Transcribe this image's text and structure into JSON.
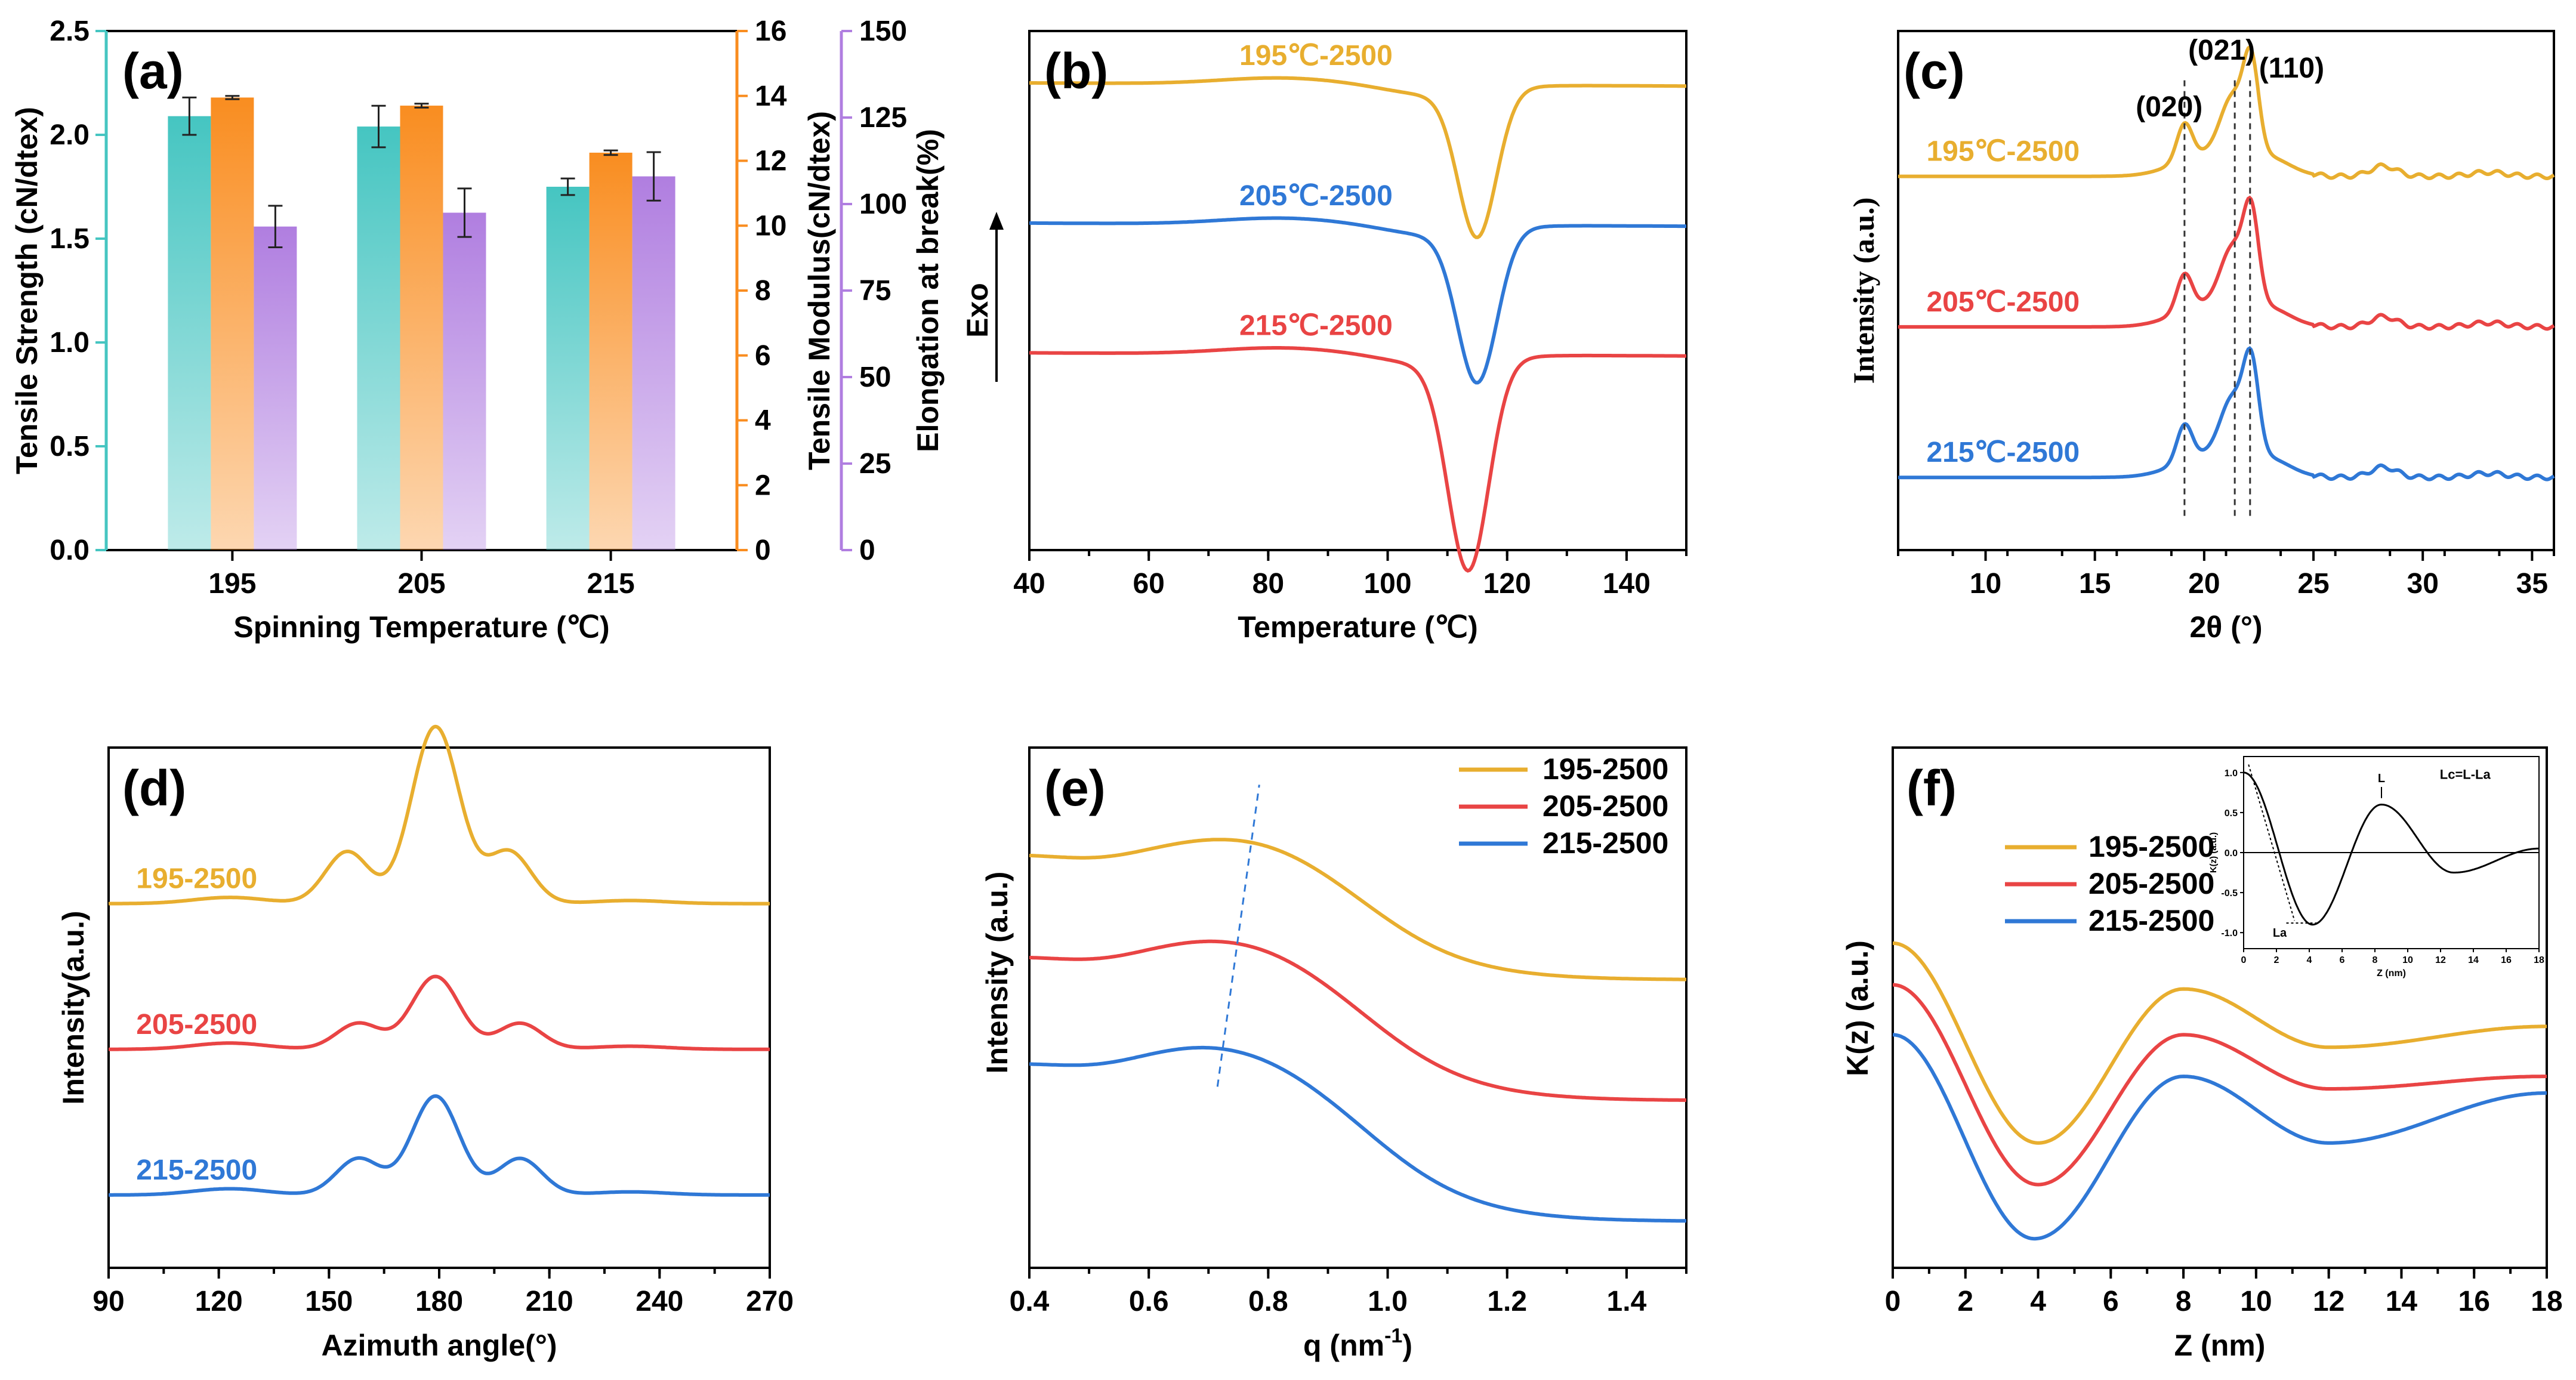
{
  "colors": {
    "yellow": "#E8AE2F",
    "red": "#E94444",
    "blue": "#2F78D6",
    "teal": "#45C5C1",
    "orange": "#F98D20",
    "purple": "#B07EE0"
  },
  "chart_data": [
    {
      "id": "a",
      "type": "bar",
      "panel_label": "(a)",
      "xlabel": "Spinning Temperature (℃)",
      "categories": [
        "195",
        "205",
        "215"
      ],
      "series": [
        {
          "name": "Tensile Strength",
          "axis": "left",
          "values": [
            2.09,
            2.04,
            1.75
          ],
          "errors": [
            0.09,
            0.1,
            0.04
          ]
        },
        {
          "name": "Tensile Modulus",
          "axis": "right1",
          "values": [
            13.95,
            13.7,
            12.25
          ],
          "errors": [
            0.05,
            0.06,
            0.07
          ]
        },
        {
          "name": "Elongation at break",
          "axis": "right2",
          "values": [
            93.5,
            97.5,
            108
          ],
          "errors": [
            6,
            7,
            7
          ]
        }
      ],
      "axes": {
        "left": {
          "label": "Tensile Strength (cN/dtex)",
          "ylim": [
            0,
            2.5
          ],
          "ticks": [
            "0.0",
            "0.5",
            "1.0",
            "1.5",
            "2.0",
            "2.5"
          ]
        },
        "right1": {
          "label": "Tensile Modulus(cN/dtex)",
          "ylim": [
            0,
            16
          ],
          "ticks": [
            "0",
            "2",
            "4",
            "6",
            "8",
            "10",
            "12",
            "14",
            "16"
          ]
        },
        "right2": {
          "label": "Elongation at break(%)",
          "ylim": [
            0,
            150
          ],
          "ticks": [
            "0",
            "25",
            "50",
            "75",
            "100",
            "125",
            "150"
          ]
        }
      }
    },
    {
      "id": "b",
      "type": "line",
      "panel_label": "(b)",
      "xlabel": "Temperature (℃)",
      "ylabel": "Exo",
      "xlim": [
        40,
        150
      ],
      "xticks": [
        "40",
        "60",
        "80",
        "100",
        "120",
        "140"
      ],
      "series": [
        {
          "name": "195℃-2500",
          "color": "yellow",
          "baseline": 0.9,
          "peak_x": 115,
          "depth": 0.28,
          "width": 3.2
        },
        {
          "name": "205℃-2500",
          "color": "blue",
          "baseline": 0.63,
          "peak_x": 115,
          "depth": 0.29,
          "width": 3.3
        },
        {
          "name": "215℃-2500",
          "color": "red",
          "baseline": 0.38,
          "peak_x": 113.5,
          "depth": 0.4,
          "width": 3.4
        }
      ]
    },
    {
      "id": "c",
      "type": "line",
      "panel_label": "(c)",
      "xlabel": "2θ (°)",
      "ylabel": "Intensity (a.u.)",
      "xlim": [
        6,
        36
      ],
      "xticks": [
        "10",
        "15",
        "20",
        "25",
        "30",
        "35"
      ],
      "peak_labels": [
        "(020)",
        "(021)",
        "(110)"
      ],
      "peak_positions": [
        19.1,
        21.4,
        22.1
      ],
      "series": [
        {
          "name": "195℃-2500",
          "color": "yellow",
          "offset": 0.72
        },
        {
          "name": "205℃-2500",
          "color": "red",
          "offset": 0.43
        },
        {
          "name": "215℃-2500",
          "color": "blue",
          "offset": 0.14
        }
      ]
    },
    {
      "id": "d",
      "type": "line",
      "panel_label": "(d)",
      "xlabel": "Azimuth angle(°)",
      "ylabel": "Intensity(a.u.)",
      "xlim": [
        90,
        270
      ],
      "xticks": [
        "90",
        "120",
        "150",
        "180",
        "210",
        "240",
        "270"
      ],
      "series": [
        {
          "name": "195-2500",
          "color": "yellow",
          "offset": 0.7,
          "main_peak": 0.34,
          "side_peak": 0.1,
          "side_pos": [
            155,
            199
          ]
        },
        {
          "name": "205-2500",
          "color": "red",
          "offset": 0.42,
          "main_peak": 0.14,
          "side_peak": 0.05,
          "side_pos": [
            158,
            202
          ]
        },
        {
          "name": "215-2500",
          "color": "blue",
          "offset": 0.14,
          "main_peak": 0.19,
          "side_peak": 0.07,
          "side_pos": [
            158,
            202
          ]
        }
      ]
    },
    {
      "id": "e",
      "type": "line",
      "panel_label": "(e)",
      "xlabel": "q (nm",
      "xlabel_sup": "-1",
      "xlabel_end": ")",
      "ylabel": "Intensity (a.u.)",
      "xlim": [
        0.4,
        1.5
      ],
      "xticks": [
        "0.4",
        "0.6",
        "0.8",
        "1.0",
        "1.2",
        "1.4"
      ],
      "series": [
        {
          "name": "195-2500",
          "color": "yellow",
          "base_left": 0.77,
          "base_right": 0.5,
          "peak_x": 0.77,
          "amp": 0.05
        },
        {
          "name": "205-2500",
          "color": "red",
          "base_left": 0.55,
          "base_right": 0.24,
          "peak_x": 0.75,
          "amp": 0.05
        },
        {
          "name": "215-2500",
          "color": "blue",
          "base_left": 0.32,
          "base_right": -0.02,
          "peak_x": 0.73,
          "amp": 0.05
        }
      ]
    },
    {
      "id": "f",
      "type": "line",
      "panel_label": "(f)",
      "xlabel": "Z (nm)",
      "ylabel": "K(z) (a.u.)",
      "xlim": [
        0,
        18
      ],
      "xticks": [
        "0",
        "2",
        "4",
        "6",
        "8",
        "10",
        "12",
        "14",
        "16",
        "18"
      ],
      "series": [
        {
          "name": "195-2500",
          "color": "yellow",
          "start": 0.58,
          "min_x": 4,
          "min_y": 0.1,
          "max_x": 8,
          "max_y": 0.47,
          "trough_y": 0.33,
          "end_y": 0.38
        },
        {
          "name": "205-2500",
          "color": "red",
          "start": 0.48,
          "min_x": 4,
          "min_y": 0.0,
          "max_x": 8,
          "max_y": 0.36,
          "trough_y": 0.23,
          "end_y": 0.26
        },
        {
          "name": "215-2500",
          "color": "blue",
          "start": 0.36,
          "min_x": 3.9,
          "min_y": -0.13,
          "max_x": 8,
          "max_y": 0.26,
          "trough_y": 0.1,
          "end_y": 0.22
        }
      ],
      "inset": {
        "title": "Lc=L-La",
        "xlabel": "Z (nm)",
        "ylabel": "K(z) (a.u.)",
        "xlim": [
          0,
          18
        ],
        "ylim": [
          -1.2,
          1.2
        ],
        "xticks": [
          "0",
          "2",
          "4",
          "6",
          "8",
          "10",
          "12",
          "14",
          "16",
          "18"
        ],
        "yticks": [
          "-1.0",
          "-0.5",
          "0.0",
          "0.5",
          "1.0"
        ],
        "markers": [
          "L",
          "La"
        ]
      }
    }
  ]
}
